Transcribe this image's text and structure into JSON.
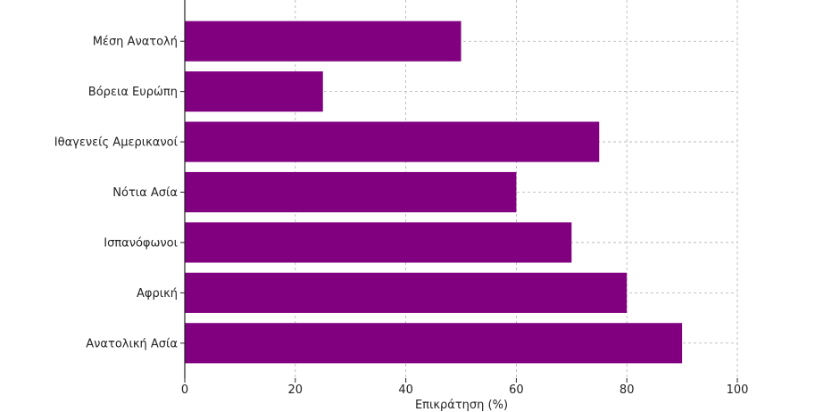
{
  "chart_data": {
    "type": "bar",
    "orientation": "horizontal",
    "categories": [
      "Ανατολική Ασία",
      "Αφρική",
      "Ισπανόφωνοι",
      "Νότια Ασία",
      "Ιθαγενείς Αμερικανοί",
      "Βόρεια Ευρώπη",
      "Μέση Ανατολή"
    ],
    "values": [
      90,
      80,
      70,
      60,
      75,
      25,
      50
    ],
    "xlabel": "Επικράτηση (%)",
    "ylabel": "",
    "xlim": [
      0,
      100
    ],
    "xticks": [
      0,
      20,
      40,
      60,
      80,
      100
    ],
    "bar_color": "#800080",
    "grid": true,
    "legend": "none"
  }
}
